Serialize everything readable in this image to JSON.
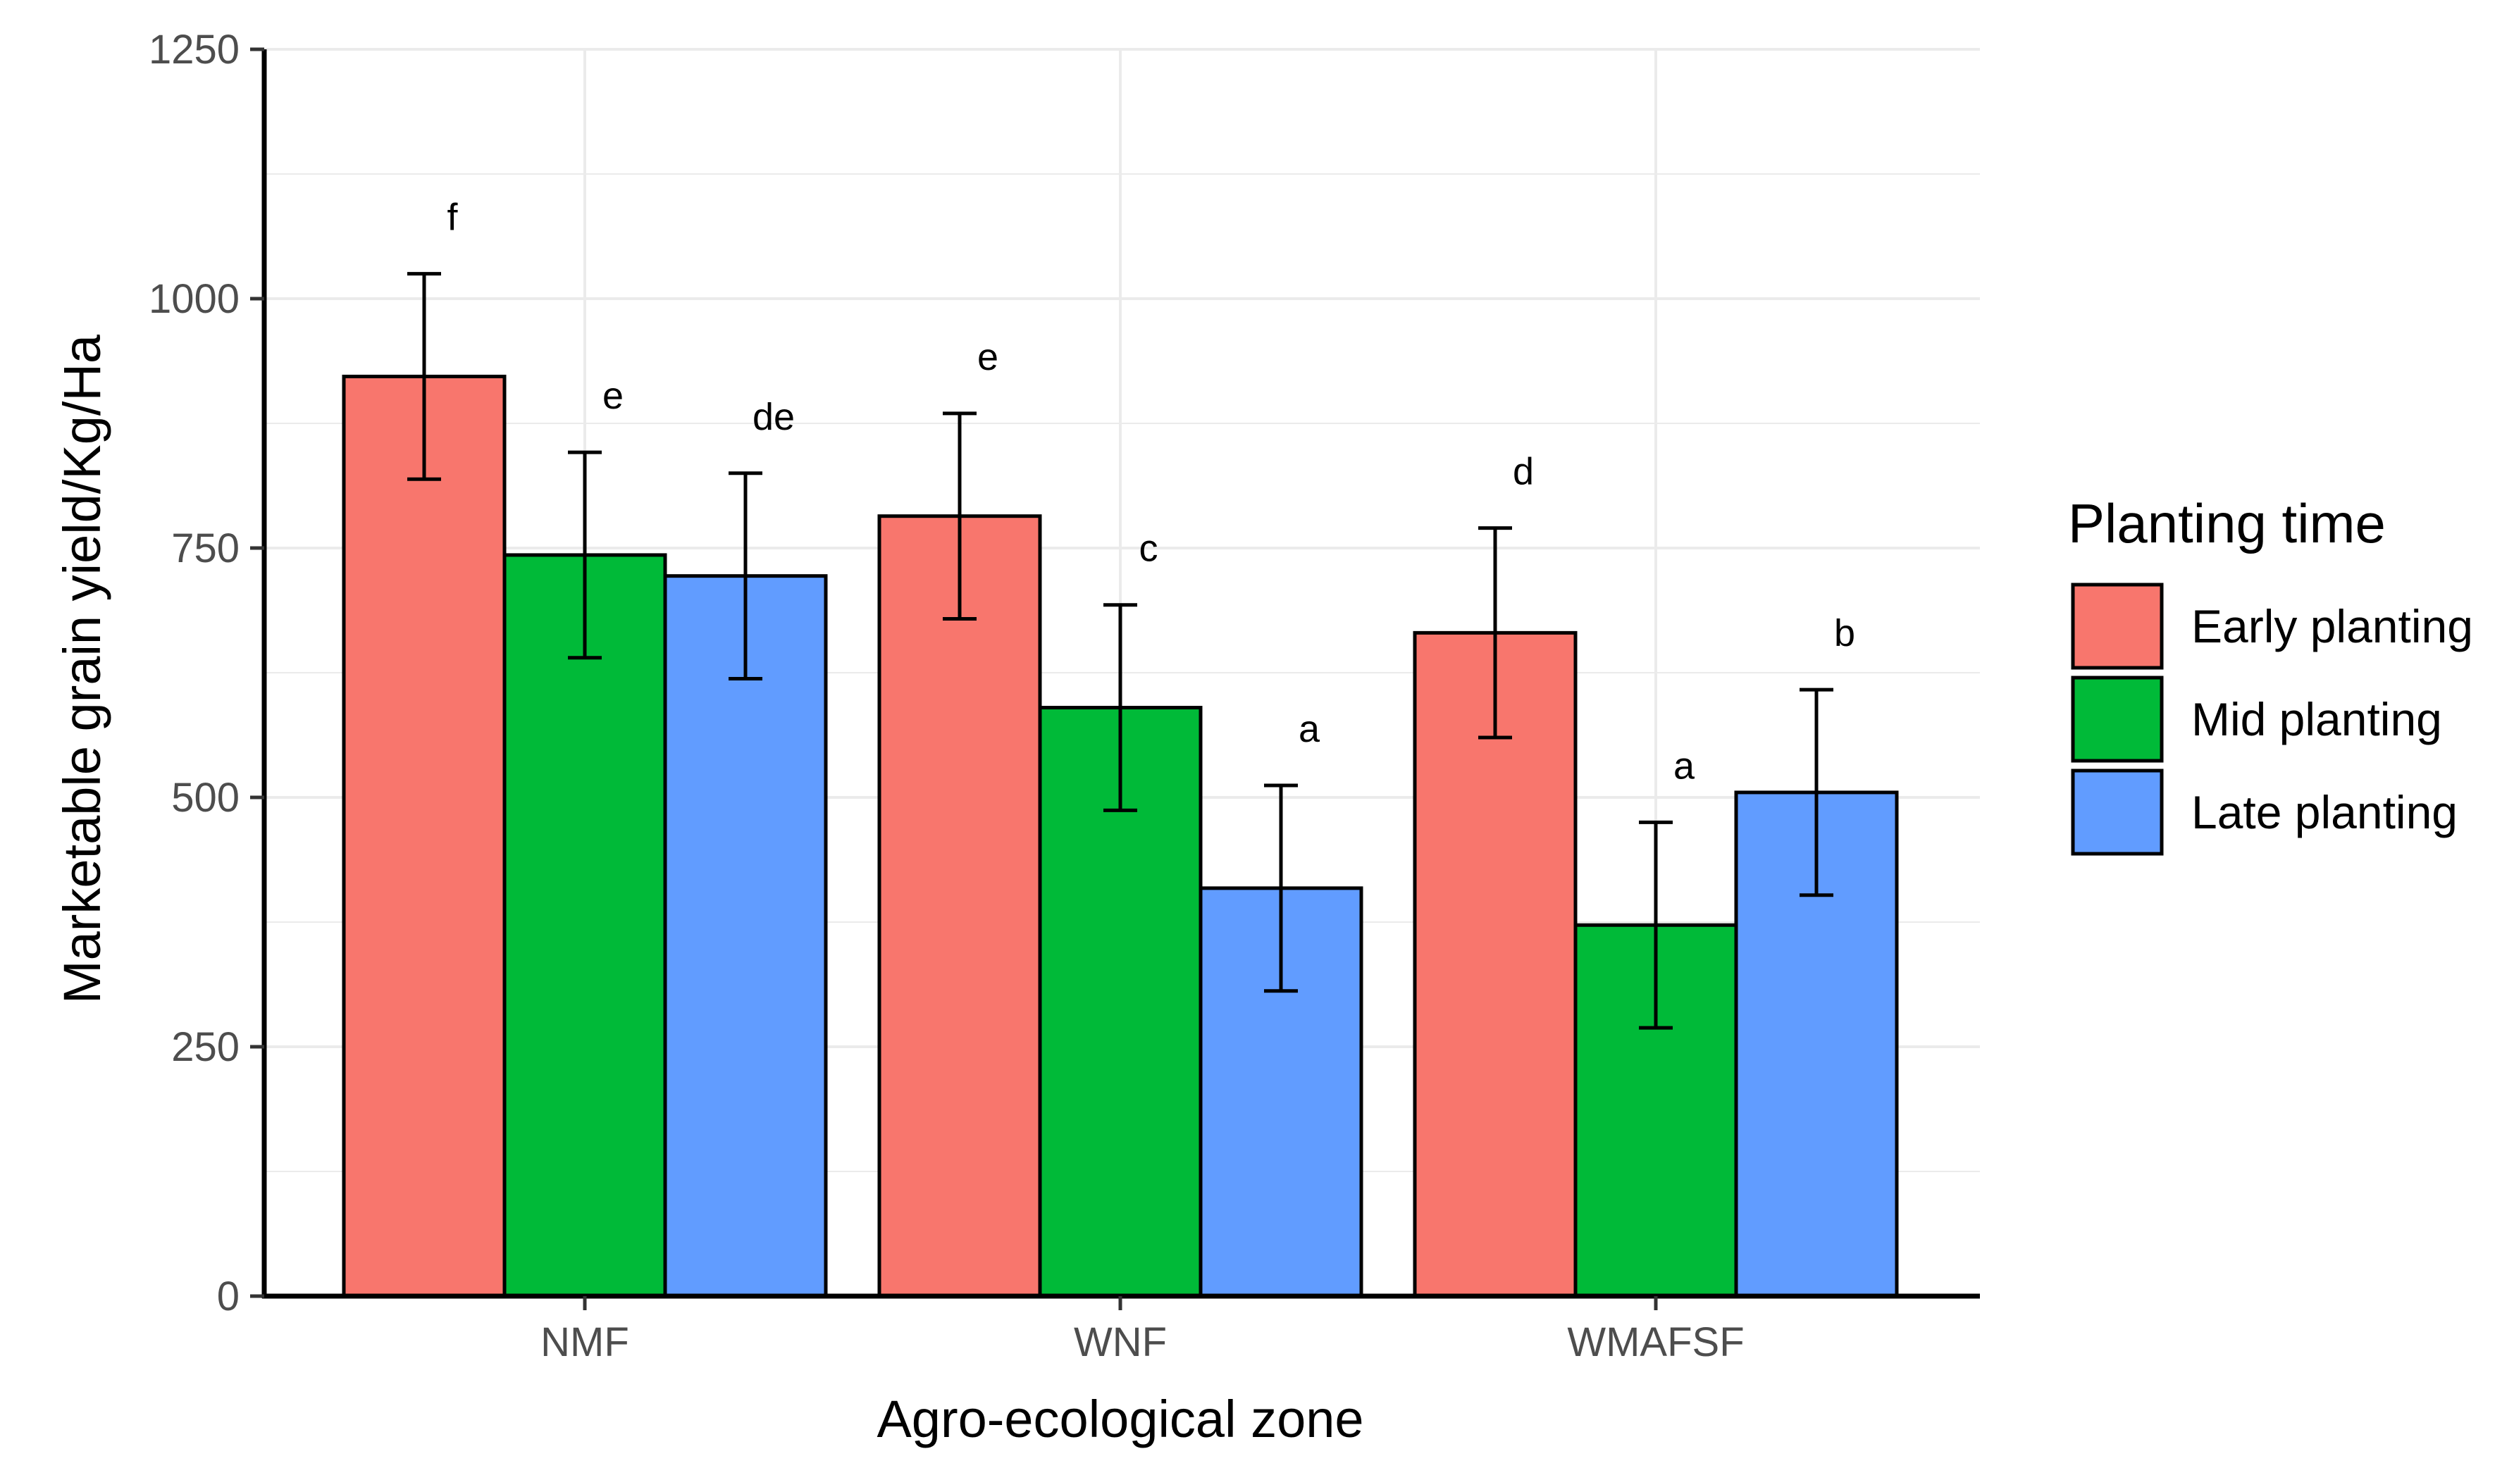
{
  "chart_data": {
    "type": "bar",
    "categories": [
      "NMF",
      "WNF",
      "WMAFSF"
    ],
    "series": [
      {
        "name": "Early planting",
        "color": "#F8766D",
        "values": [
          922,
          782,
          665
        ],
        "errors": [
          103,
          103,
          105
        ],
        "labels": [
          "f",
          "e",
          "d"
        ]
      },
      {
        "name": "Mid planting",
        "color": "#00BA38",
        "values": [
          743,
          590,
          372
        ],
        "errors": [
          103,
          103,
          103
        ],
        "labels": [
          "e",
          "c",
          "a"
        ]
      },
      {
        "name": "Late planting",
        "color": "#619CFF",
        "values": [
          722,
          409,
          505
        ],
        "errors": [
          103,
          103,
          103
        ],
        "labels": [
          "de",
          "a",
          "b"
        ]
      }
    ],
    "xlabel": "Agro-ecological zone",
    "ylabel": "Marketable grain yield/Kg/Ha",
    "ylim": [
      0,
      1250
    ],
    "yticks": [
      0,
      250,
      500,
      750,
      1000,
      1250
    ],
    "legend_title": "Planting time",
    "legend_position": "right",
    "grid": true
  }
}
